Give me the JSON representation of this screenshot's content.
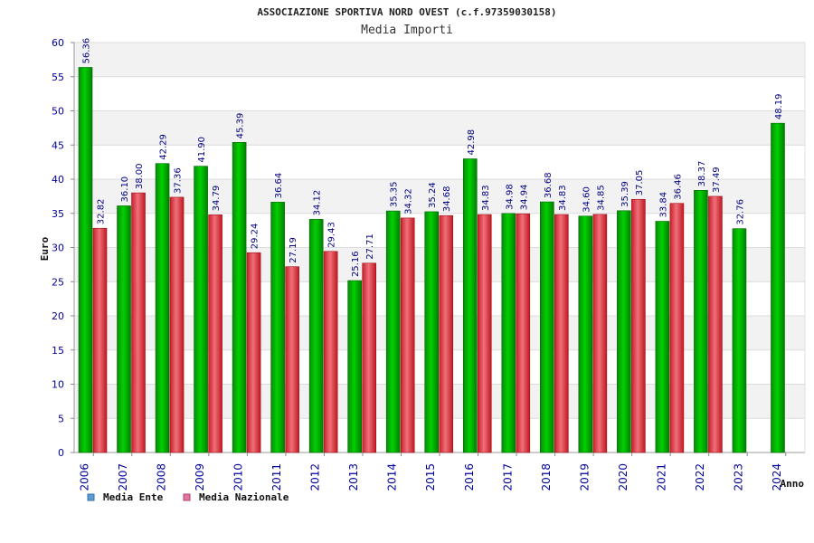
{
  "chart_data": {
    "type": "bar",
    "title": "ASSOCIAZIONE SPORTIVA NORD OVEST (c.f.97359030158)",
    "subtitle": "Media Importi",
    "ylabel": "Euro",
    "xlabel": "Anno",
    "ylim": [
      0,
      60
    ],
    "yticks": [
      0,
      5,
      10,
      15,
      20,
      25,
      30,
      35,
      40,
      45,
      50,
      55,
      60
    ],
    "categories": [
      "2006",
      "2007",
      "2008",
      "2009",
      "2010",
      "2011",
      "2012",
      "2013",
      "2014",
      "2015",
      "2016",
      "2017",
      "2018",
      "2019",
      "2020",
      "2021",
      "2022",
      "2023",
      "2024"
    ],
    "series": [
      {
        "name": "Media Ente",
        "color": "#00b400",
        "legend_color": "#5b9bd5",
        "values": [
          56.36,
          36.1,
          42.29,
          41.9,
          45.39,
          36.64,
          34.12,
          25.16,
          35.35,
          35.24,
          42.98,
          34.98,
          36.68,
          34.6,
          35.39,
          33.84,
          38.37,
          32.76,
          48.19
        ],
        "labels": [
          "56.36",
          "36.10",
          "42.29",
          "41.90",
          "45.39",
          "36.64",
          "34.12",
          "25.16",
          "35.35",
          "35.24",
          "42.98",
          "34.98",
          "36.68",
          "34.60",
          "35.39",
          "33.84",
          "38.37",
          "32.76",
          "48.19"
        ]
      },
      {
        "name": "Media Nazionale",
        "color": "#e8303a",
        "legend_color": "#e075a0",
        "values": [
          32.82,
          38.0,
          37.36,
          34.79,
          29.24,
          27.19,
          29.43,
          27.71,
          34.32,
          34.68,
          34.83,
          34.94,
          34.83,
          34.85,
          37.05,
          36.46,
          37.49,
          null,
          null
        ],
        "labels": [
          "32.82",
          "38.00",
          "37.36",
          "34.79",
          "29.24",
          "27.19",
          "29.43",
          "27.71",
          "34.32",
          "34.68",
          "34.83",
          "34.94",
          "34.83",
          "34.85",
          "37.05",
          "36.46",
          "37.49",
          null,
          null
        ]
      }
    ],
    "grid": true,
    "legend_position": "bottom-left"
  }
}
